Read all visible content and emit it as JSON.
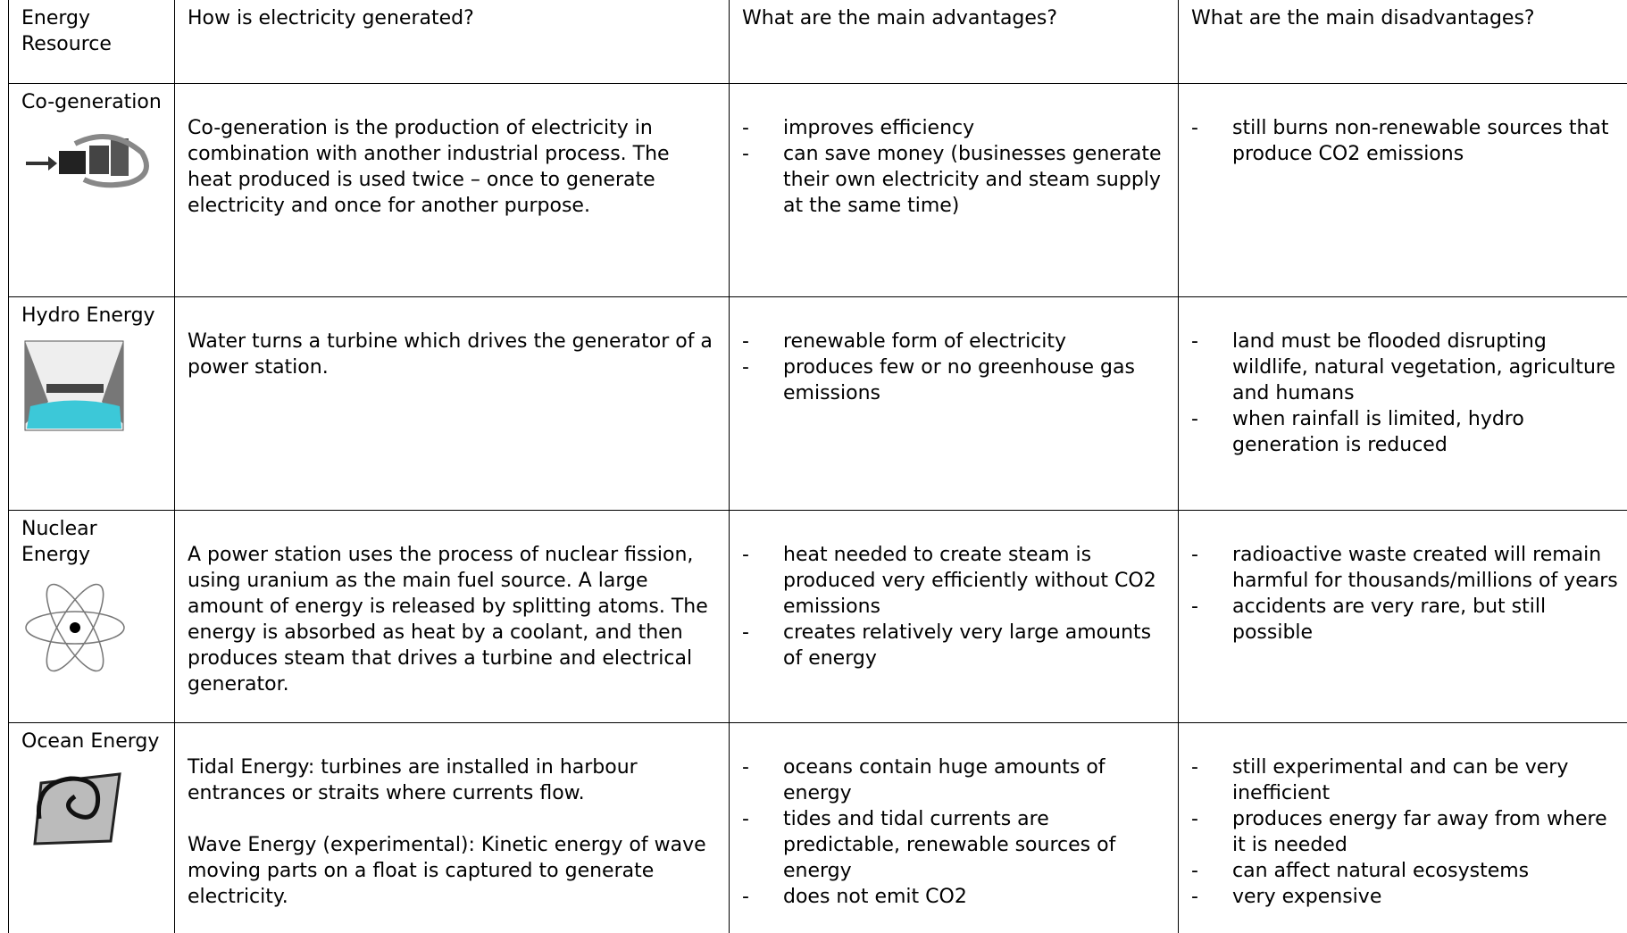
{
  "table": {
    "headers": [
      "Energy Resource",
      "How is electricity generated?",
      "What are the main advantages?",
      "What are the main disadvantages?"
    ],
    "bullet": "-",
    "rows": [
      {
        "resource": "Co-generation",
        "generation": [
          "Co-generation is the production of electricity in combination with another industrial process. The heat produced is used twice – once to generate electricity and once for another purpose."
        ],
        "advantages": [
          "improves efficiency",
          "can save money (businesses generate their own electricity and steam supply at the same time)"
        ],
        "disadvantages": [
          "still burns non-renewable sources that produce CO2 emissions"
        ]
      },
      {
        "resource": "Hydro Energy",
        "generation": [
          "Water turns a turbine which drives the generator of a power station."
        ],
        "advantages": [
          "renewable form of electricity",
          "produces few or no greenhouse gas emissions"
        ],
        "disadvantages": [
          "land must be flooded disrupting wildlife, natural vegetation, agriculture and humans",
          "when rainfall is limited, hydro generation is reduced"
        ]
      },
      {
        "resource": "Nuclear Energy",
        "generation": [
          "A power station uses the process of nuclear fission, using uranium as the main fuel source. A large amount of energy is released by splitting atoms.  The energy is absorbed as heat by a coolant, and then produces steam that drives a turbine and electrical generator."
        ],
        "advantages": [
          "heat needed to create steam is produced very efficiently without CO2 emissions",
          "creates relatively very large amounts of energy"
        ],
        "disadvantages": [
          "radioactive waste created will remain harmful for thousands/millions of years",
          "accidents are very rare, but still possible"
        ]
      },
      {
        "resource": "Ocean Energy",
        "generation": [
          "Tidal Energy: turbines are installed in harbour entrances or straits where currents flow.",
          "Wave Energy (experimental): Kinetic energy of wave moving parts on a float is captured to generate electricity."
        ],
        "advantages": [
          "oceans contain huge amounts of energy",
          "tides and tidal currents are predictable, renewable sources of energy",
          "does not emit CO2"
        ],
        "disadvantages": [
          "still experimental and can be very inefficient",
          "produces energy far away from where it is needed",
          "can affect natural ecosystems",
          "very expensive"
        ]
      }
    ]
  }
}
